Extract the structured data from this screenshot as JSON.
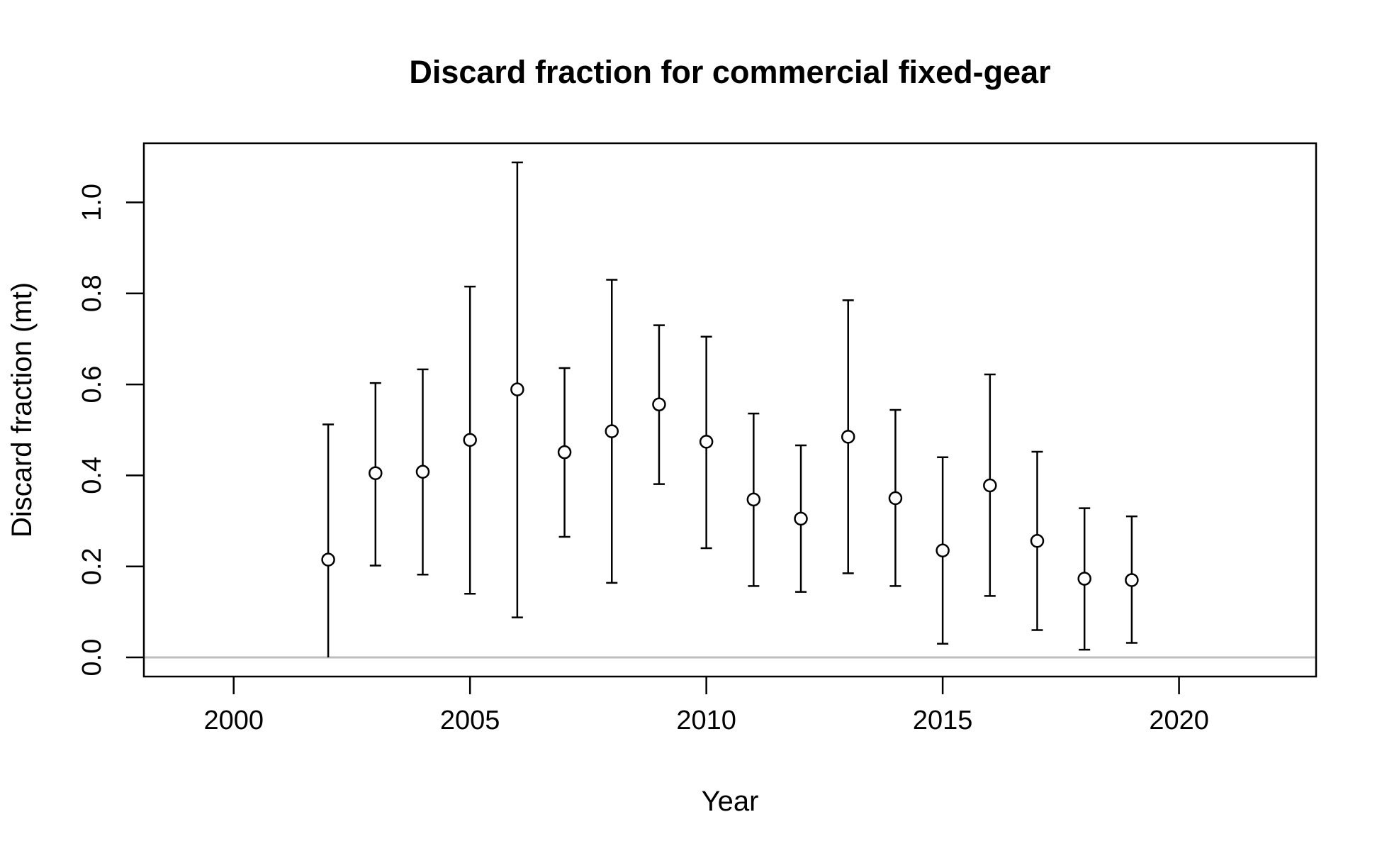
{
  "chart_data": {
    "type": "scatter",
    "title": "Discard fraction for commercial fixed-gear",
    "xlabel": "Year",
    "ylabel": "Discard fraction (mt)",
    "xlim": [
      1998.1,
      2022.9
    ],
    "ylim": [
      -0.042,
      1.13
    ],
    "x_ticks": [
      2000,
      2005,
      2010,
      2015,
      2020
    ],
    "y_ticks": [
      0.0,
      0.2,
      0.4,
      0.6,
      0.8,
      1.0
    ],
    "x_tick_labels": [
      "2000",
      "2005",
      "2010",
      "2015",
      "2020"
    ],
    "y_tick_labels": [
      "0.0",
      "0.2",
      "0.4",
      "0.6",
      "0.8",
      "1.0"
    ],
    "reference_line": {
      "y": 0,
      "color": "#bebebe"
    },
    "grid": false,
    "legend": "none",
    "marker": "open-circle",
    "series": [
      {
        "points": [
          {
            "x": 2002,
            "y": 0.215,
            "lower": 0.0,
            "upper": 0.512
          },
          {
            "x": 2003,
            "y": 0.405,
            "lower": 0.202,
            "upper": 0.603
          },
          {
            "x": 2004,
            "y": 0.408,
            "lower": 0.182,
            "upper": 0.633
          },
          {
            "x": 2005,
            "y": 0.478,
            "lower": 0.14,
            "upper": 0.815
          },
          {
            "x": 2006,
            "y": 0.589,
            "lower": 0.088,
            "upper": 1.088
          },
          {
            "x": 2007,
            "y": 0.451,
            "lower": 0.265,
            "upper": 0.636
          },
          {
            "x": 2008,
            "y": 0.497,
            "lower": 0.164,
            "upper": 0.83
          },
          {
            "x": 2009,
            "y": 0.556,
            "lower": 0.381,
            "upper": 0.73
          },
          {
            "x": 2010,
            "y": 0.474,
            "lower": 0.24,
            "upper": 0.705
          },
          {
            "x": 2011,
            "y": 0.347,
            "lower": 0.157,
            "upper": 0.536
          },
          {
            "x": 2012,
            "y": 0.305,
            "lower": 0.144,
            "upper": 0.466
          },
          {
            "x": 2013,
            "y": 0.485,
            "lower": 0.185,
            "upper": 0.785
          },
          {
            "x": 2014,
            "y": 0.35,
            "lower": 0.157,
            "upper": 0.544
          },
          {
            "x": 2015,
            "y": 0.235,
            "lower": 0.03,
            "upper": 0.44
          },
          {
            "x": 2016,
            "y": 0.378,
            "lower": 0.135,
            "upper": 0.622
          },
          {
            "x": 2017,
            "y": 0.256,
            "lower": 0.06,
            "upper": 0.452
          },
          {
            "x": 2018,
            "y": 0.173,
            "lower": 0.017,
            "upper": 0.328
          },
          {
            "x": 2019,
            "y": 0.17,
            "lower": 0.032,
            "upper": 0.31
          }
        ]
      }
    ]
  }
}
